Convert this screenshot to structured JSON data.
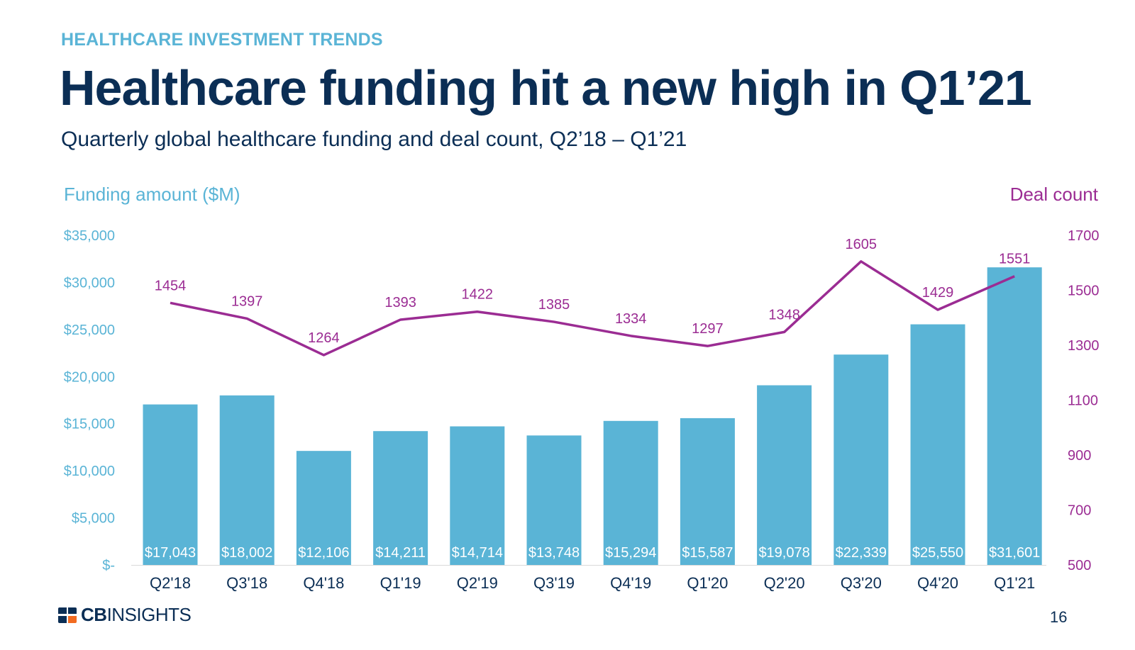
{
  "header": {
    "eyebrow": "HEALTHCARE INVESTMENT TRENDS",
    "title": "Healthcare funding hit a new high in Q1’21",
    "subtitle": "Quarterly global healthcare funding and deal count, Q2’18 – Q1’21"
  },
  "footer": {
    "logo_bold": "CB",
    "logo_light": "INSIGHTS",
    "page_number": "16"
  },
  "colors": {
    "bar": "#5ab4d6",
    "line": "#9b2c93",
    "left_axis": "#5ab4d6",
    "right_axis": "#9b2c93",
    "bar_label": "#ffffff",
    "category": "#0b2e55"
  },
  "chart_data": {
    "type": "bar",
    "categories": [
      "Q2'18",
      "Q3'18",
      "Q4'18",
      "Q1'19",
      "Q2'19",
      "Q3'19",
      "Q4'19",
      "Q1'20",
      "Q2'20",
      "Q3'20",
      "Q4'20",
      "Q1'21"
    ],
    "series": [
      {
        "name": "Funding amount ($M)",
        "type": "bar",
        "axis": "left",
        "values": [
          17043,
          18002,
          12106,
          14211,
          14714,
          13748,
          15294,
          15587,
          19078,
          22339,
          25550,
          31601
        ],
        "labels": [
          "$17,043",
          "$18,002",
          "$12,106",
          "$14,211",
          "$14,714",
          "$13,748",
          "$15,294",
          "$15,587",
          "$19,078",
          "$22,339",
          "$25,550",
          "$31,601"
        ]
      },
      {
        "name": "Deal count",
        "type": "line",
        "axis": "right",
        "values": [
          1454,
          1397,
          1264,
          1393,
          1422,
          1385,
          1334,
          1297,
          1348,
          1605,
          1429,
          1551
        ]
      }
    ],
    "left_axis": {
      "title": "Funding amount ($M)",
      "ylim": [
        0,
        35000
      ],
      "ticks": [
        0,
        5000,
        10000,
        15000,
        20000,
        25000,
        30000,
        35000
      ],
      "tick_labels": [
        "$-",
        "$5,000",
        "$10,000",
        "$15,000",
        "$20,000",
        "$25,000",
        "$30,000",
        "$35,000"
      ]
    },
    "right_axis": {
      "title": "Deal count",
      "ylim": [
        500,
        1700
      ],
      "ticks": [
        500,
        700,
        900,
        1100,
        1300,
        1500,
        1700
      ],
      "tick_labels": [
        "500",
        "700",
        "900",
        "1100",
        "1300",
        "1500",
        "1700"
      ]
    },
    "grid": false,
    "legend": "none"
  }
}
